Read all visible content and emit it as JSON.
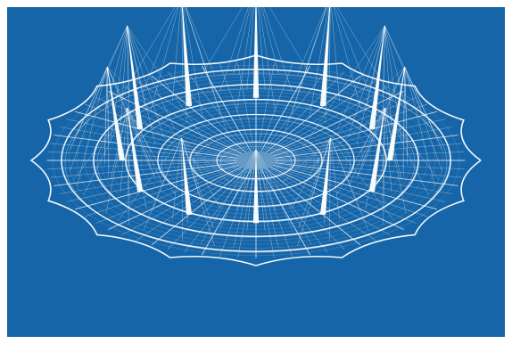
{
  "figure": {
    "subject": "dome-wireframe",
    "background_color": "#1565a8",
    "line_color": "#ffffff",
    "mast_count": 12,
    "ring_count": 6,
    "scallop_count": 16
  }
}
